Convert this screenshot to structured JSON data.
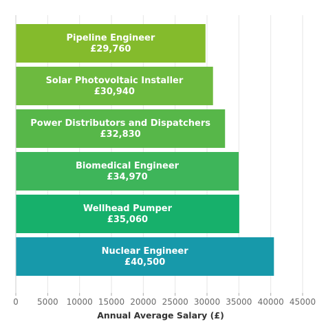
{
  "chart_data": {
    "type": "bar",
    "orientation": "horizontal",
    "categories": [
      "Pipeline Engineer",
      "Solar Photovoltaic Installer",
      "Power Distributors and Dispatchers",
      "Biomedical Engineer",
      "Wellhead Pumper",
      "Nuclear Engineer"
    ],
    "values": [
      29760,
      30940,
      32830,
      34970,
      35060,
      40500
    ],
    "value_labels": [
      "£29,760",
      "£30,940",
      "£32,830",
      "£34,970",
      "£35,060",
      "£40,500"
    ],
    "bar_colors": [
      "#84bb2c",
      "#6dba3f",
      "#57b749",
      "#3eb55a",
      "#17b06b",
      "#1799aa"
    ],
    "xlabel": "Annual Average Salary (£)",
    "ylabel": "",
    "xlim": [
      0,
      45000
    ],
    "x_ticks": [
      "0",
      "5000",
      "10000",
      "15000",
      "20000",
      "25000",
      "30000",
      "35000",
      "40000",
      "45000"
    ],
    "grid": true,
    "legend": "none"
  }
}
